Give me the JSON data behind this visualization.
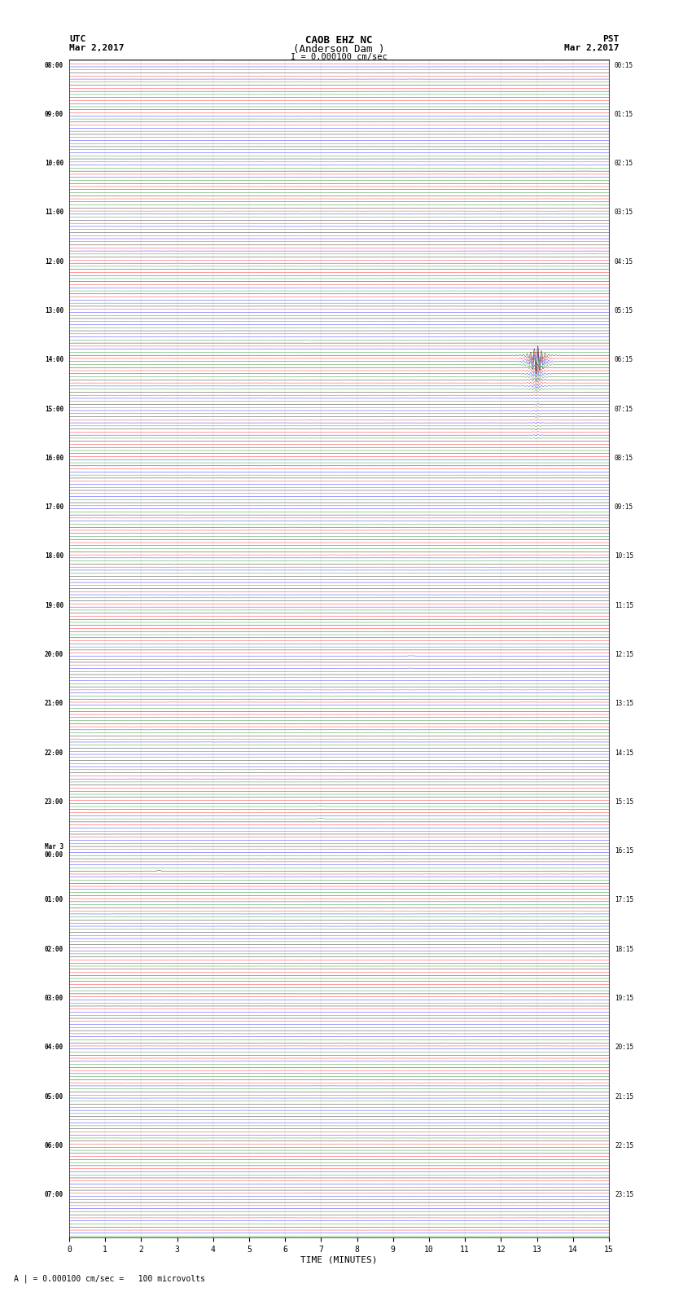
{
  "title_line1": "CAOB EHZ NC",
  "title_line2": "(Anderson Dam )",
  "scale_label": "I = 0.000100 cm/sec",
  "footer_label": "A | = 0.000100 cm/sec =   100 microvolts",
  "utc_label": "UTC",
  "utc_date": "Mar 2,2017",
  "pst_label": "PST",
  "pst_date": "Mar 2,2017",
  "xlabel": "TIME (MINUTES)",
  "xlim": [
    0,
    15
  ],
  "xticks": [
    0,
    1,
    2,
    3,
    4,
    5,
    6,
    7,
    8,
    9,
    10,
    11,
    12,
    13,
    14,
    15
  ],
  "fig_width": 8.5,
  "fig_height": 16.13,
  "dpi": 100,
  "bg_color": "#ffffff",
  "trace_colors": [
    "black",
    "red",
    "blue",
    "green"
  ],
  "utc_times": [
    "08:00",
    "",
    "",
    "",
    "09:00",
    "",
    "",
    "",
    "10:00",
    "",
    "",
    "",
    "11:00",
    "",
    "",
    "",
    "12:00",
    "",
    "",
    "",
    "13:00",
    "",
    "",
    "",
    "14:00",
    "",
    "",
    "",
    "15:00",
    "",
    "",
    "",
    "16:00",
    "",
    "",
    "",
    "17:00",
    "",
    "",
    "",
    "18:00",
    "",
    "",
    "",
    "19:00",
    "",
    "",
    "",
    "20:00",
    "",
    "",
    "",
    "21:00",
    "",
    "",
    "",
    "22:00",
    "",
    "",
    "",
    "23:00",
    "",
    "",
    "",
    "Mar 3\n00:00",
    "",
    "",
    "",
    "01:00",
    "",
    "",
    "",
    "02:00",
    "",
    "",
    "",
    "03:00",
    "",
    "",
    "",
    "04:00",
    "",
    "",
    "",
    "05:00",
    "",
    "",
    "",
    "06:00",
    "",
    "",
    "",
    "07:00",
    "",
    "",
    ""
  ],
  "pst_times": [
    "00:15",
    "",
    "",
    "",
    "01:15",
    "",
    "",
    "",
    "02:15",
    "",
    "",
    "",
    "03:15",
    "",
    "",
    "",
    "04:15",
    "",
    "",
    "",
    "05:15",
    "",
    "",
    "",
    "06:15",
    "",
    "",
    "",
    "07:15",
    "",
    "",
    "",
    "08:15",
    "",
    "",
    "",
    "09:15",
    "",
    "",
    "",
    "10:15",
    "",
    "",
    "",
    "11:15",
    "",
    "",
    "",
    "12:15",
    "",
    "",
    "",
    "13:15",
    "",
    "",
    "",
    "14:15",
    "",
    "",
    "",
    "15:15",
    "",
    "",
    "",
    "16:15",
    "",
    "",
    "",
    "17:15",
    "",
    "",
    "",
    "18:15",
    "",
    "",
    "",
    "19:15",
    "",
    "",
    "",
    "20:15",
    "",
    "",
    "",
    "21:15",
    "",
    "",
    "",
    "22:15",
    "",
    "",
    "",
    "23:15",
    "",
    "",
    ""
  ],
  "n_rows": 96,
  "traces_per_row": 4,
  "noise_std_black": 0.012,
  "noise_std_red": 0.025,
  "noise_std_blue": 0.018,
  "noise_std_green": 0.01,
  "earthquake_row": 24,
  "earthquake_minute": 13.0,
  "earthquake_amplitude": 8.0,
  "earthquake_duration": 0.6,
  "quake_row_spread": 4,
  "aftershock_rows": [
    28,
    29,
    30
  ],
  "aftershock_minute": 13.0,
  "aftershock_amplitude": 0.6,
  "small_event_rows": [
    48,
    49
  ],
  "small_event_minute": 9.5,
  "small_event_amplitude": 0.08,
  "small_event2_rows": [
    60,
    61
  ],
  "small_event2_minute": 7.0,
  "small_event2_amplitude": 0.07,
  "glitch_row": 66,
  "glitch_minute": 2.5,
  "glitch_amplitude": 0.12
}
